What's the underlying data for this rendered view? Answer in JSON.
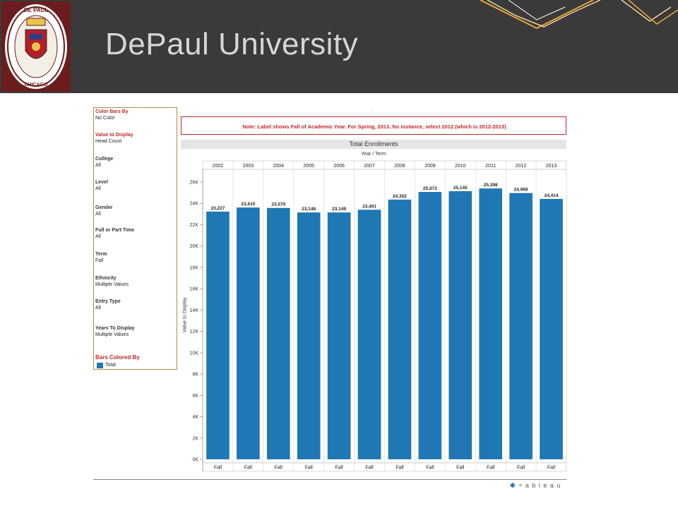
{
  "header": {
    "title": "DePaul University",
    "seal_text": "DE PAUL UNIVERSITY CHICAGO ILLINOIS"
  },
  "filters": [
    {
      "label": "Color Bars By",
      "value": "No Color",
      "accent": true
    },
    {
      "label": "Value to Display",
      "value": "Head Count",
      "accent": true
    },
    {
      "label": "College",
      "value": "All",
      "accent": false
    },
    {
      "label": "Level",
      "value": "All",
      "accent": false
    },
    {
      "label": "Gender",
      "value": "All",
      "accent": false
    },
    {
      "label": "Full or Part Time",
      "value": "All",
      "accent": false
    },
    {
      "label": "Term",
      "value": "Fall",
      "accent": false
    },
    {
      "label": "Ethnicity",
      "value": "Multiple Values",
      "accent": false
    },
    {
      "label": "Entry Type",
      "value": "All",
      "accent": false
    },
    {
      "label": "Years To Display",
      "value": "Multiple Values",
      "accent": false
    }
  ],
  "legend": {
    "title": "Bars Colored By",
    "item": "Total",
    "color": "#1f77b4"
  },
  "note": "Note: Label shows Fall of Academic Year.  For Spring, 2013, for instance, select 2012 (which is 2012-2013)",
  "logo_text": "+ a b l e a u",
  "colors": {
    "bar": "#1f77b4",
    "accent_red": "#c0272d",
    "header_bg": "#3a3a3a"
  },
  "chart_data": {
    "type": "bar",
    "title": "Total Enrollments",
    "column_header": "Year  /  Term",
    "ylabel": "Value to Display",
    "categories": [
      "2002",
      "2003",
      "2004",
      "2005",
      "2006",
      "2007",
      "2008",
      "2009",
      "2010",
      "2011",
      "2012",
      "2013"
    ],
    "sub_categories": [
      "Fall",
      "Fall",
      "Fall",
      "Fall",
      "Fall",
      "Fall",
      "Fall",
      "Fall",
      "Fall",
      "Fall",
      "Fall",
      "Fall"
    ],
    "values": [
      23227,
      23610,
      23570,
      23148,
      23149,
      23401,
      24352,
      25072,
      25145,
      25398,
      24966,
      24414
    ],
    "value_labels": [
      "23,227",
      "23,610",
      "23,570",
      "23,148",
      "23,149",
      "23,401",
      "24,352",
      "25,072",
      "25,145",
      "25,398",
      "24,966",
      "24,414"
    ],
    "yticks": [
      0,
      2000,
      4000,
      6000,
      8000,
      10000,
      12000,
      14000,
      16000,
      18000,
      20000,
      22000,
      24000,
      26000
    ],
    "ytick_labels": [
      "0K",
      "2K",
      "4K",
      "6K",
      "8K",
      "10K",
      "12K",
      "14K",
      "16K",
      "18K",
      "20K",
      "22K",
      "24K",
      "26K"
    ],
    "ylim": [
      0,
      27500
    ],
    "grid": false
  }
}
